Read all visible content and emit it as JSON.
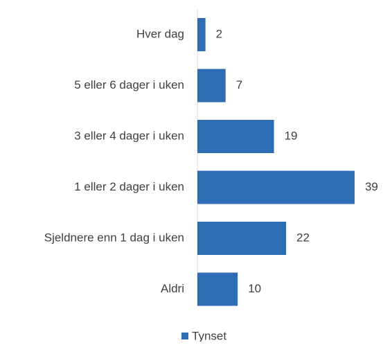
{
  "chart_data": {
    "type": "bar",
    "orientation": "horizontal",
    "categories": [
      "Hver dag",
      "5 eller 6 dager i uken",
      "3 eller 4 dager i uken",
      "1 eller 2 dager i uken",
      "Sjeldnere enn 1 dag i uken",
      "Aldri"
    ],
    "series": [
      {
        "name": "Tynset",
        "color": "#2e6db4",
        "values": [
          2,
          7,
          19,
          39,
          22,
          10
        ]
      }
    ],
    "legend": "bottom",
    "grid": false
  }
}
